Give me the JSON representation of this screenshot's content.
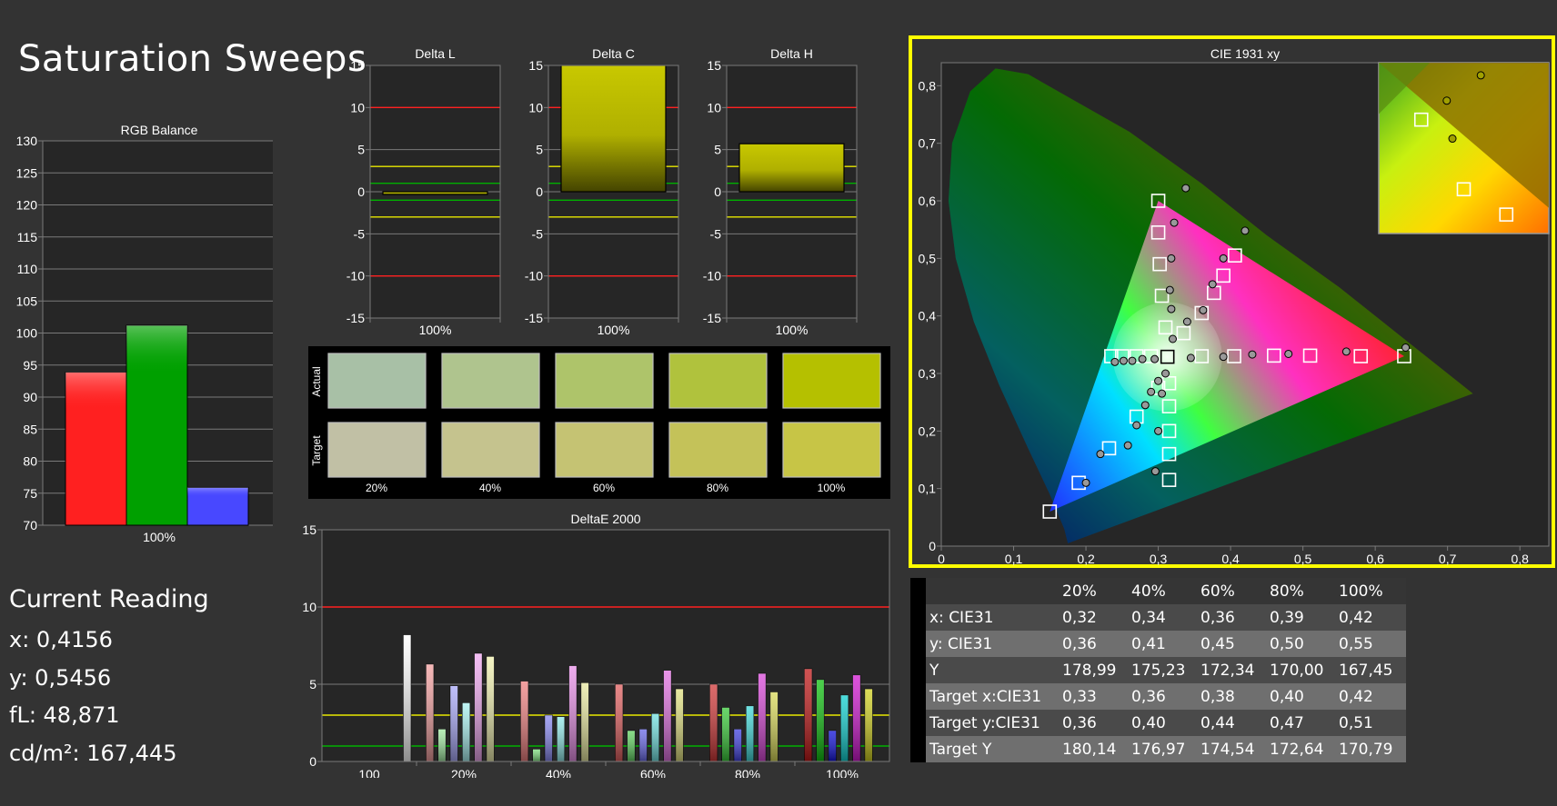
{
  "page_title": "Saturation Sweeps",
  "current_reading": {
    "heading": "Current Reading",
    "lines": [
      "x: 0,4156",
      "y: 0,5456",
      "fL: 48,871",
      "cd/m²: 167,445"
    ]
  },
  "colors": {
    "background": "#333333",
    "plot_bg": "#262626",
    "grid": "#7a7a7a",
    "highlight_border": "#ffff00",
    "red_limit": "#ff2020",
    "yellow_limit": "#e8e800",
    "green_limit": "#00b000",
    "yellow_bar": "#c8c800"
  },
  "chart_data": [
    {
      "id": "rgb_balance",
      "type": "bar",
      "title": "RGB Balance",
      "categories": [
        "100%"
      ],
      "ylim": [
        70,
        130
      ],
      "yticks": [
        70,
        75,
        80,
        85,
        90,
        95,
        100,
        105,
        110,
        115,
        120,
        125,
        130
      ],
      "series": [
        {
          "color": "#ff2020",
          "values": [
            93.9
          ]
        },
        {
          "color": "#00a000",
          "values": [
            101.2
          ]
        },
        {
          "color": "#4848ff",
          "values": [
            75.9
          ]
        }
      ],
      "grid": true
    },
    {
      "id": "delta_l",
      "type": "bar",
      "title": "Delta L",
      "categories": [
        "100%"
      ],
      "values": [
        -0.3
      ],
      "ylim": [
        -15,
        15
      ],
      "yticks": [
        15,
        10,
        5,
        0,
        -5,
        -10,
        -15
      ],
      "limits": {
        "red": [
          10,
          -10
        ],
        "yellow": [
          3,
          -3
        ],
        "green": [
          1,
          -1
        ]
      }
    },
    {
      "id": "delta_c",
      "type": "bar",
      "title": "Delta C",
      "categories": [
        "100%"
      ],
      "values": [
        15
      ],
      "ylim": [
        -15,
        15
      ],
      "yticks": [
        15,
        10,
        5,
        0,
        -5,
        -10,
        -15
      ],
      "limits": {
        "red": [
          10,
          -10
        ],
        "yellow": [
          3,
          -3
        ],
        "green": [
          1,
          -1
        ]
      }
    },
    {
      "id": "delta_h",
      "type": "bar",
      "title": "Delta H",
      "categories": [
        "100%"
      ],
      "values": [
        5.7
      ],
      "ylim": [
        -15,
        15
      ],
      "yticks": [
        15,
        10,
        5,
        0,
        -5,
        -10,
        -15
      ],
      "limits": {
        "red": [
          10,
          -10
        ],
        "yellow": [
          3,
          -3
        ],
        "green": [
          1,
          -1
        ]
      }
    },
    {
      "id": "swatches",
      "type": "table",
      "rows": [
        "Actual",
        "Target"
      ],
      "columns": [
        "20%",
        "40%",
        "60%",
        "80%",
        "100%"
      ],
      "actual_colors": [
        "#a8c0a6",
        "#afc48e",
        "#aec46a",
        "#b0c23d",
        "#b5c000"
      ],
      "target_colors": [
        "#c1c0a5",
        "#c5c38e",
        "#c5c373",
        "#c4c259",
        "#c7c546"
      ]
    },
    {
      "id": "deltae_2000",
      "type": "bar",
      "title": "DeltaE 2000",
      "categories": [
        "100",
        "20%",
        "40%",
        "60%",
        "80%",
        "100%"
      ],
      "ylim": [
        0,
        15
      ],
      "yticks": [
        0,
        5,
        10,
        15
      ],
      "limits": {
        "red": 10,
        "yellow": 3,
        "green": 1
      },
      "groups": [
        {
          "category": "100",
          "bars": [
            {
              "color": "#ffffff",
              "value": 8.2
            }
          ]
        },
        {
          "category": "20%",
          "bars": [
            {
              "color": "#f2a0a0",
              "value": 6.3
            },
            {
              "color": "#a0e8a0",
              "value": 2.1
            },
            {
              "color": "#a8a8f8",
              "value": 4.9
            },
            {
              "color": "#a8f0f0",
              "value": 3.8
            },
            {
              "color": "#f0a8f0",
              "value": 7.0
            },
            {
              "color": "#f0f0b0",
              "value": 6.8
            }
          ]
        },
        {
          "category": "40%",
          "bars": [
            {
              "color": "#ee8080",
              "value": 5.2
            },
            {
              "color": "#80e080",
              "value": 0.8
            },
            {
              "color": "#8888f0",
              "value": 3.0
            },
            {
              "color": "#90e8e8",
              "value": 2.9
            },
            {
              "color": "#e890e8",
              "value": 6.2
            },
            {
              "color": "#e8e8a0",
              "value": 5.1
            }
          ]
        },
        {
          "category": "60%",
          "bars": [
            {
              "color": "#e06060",
              "value": 5.0
            },
            {
              "color": "#60d060",
              "value": 2.0
            },
            {
              "color": "#6868e8",
              "value": 2.1
            },
            {
              "color": "#70e0e0",
              "value": 3.1
            },
            {
              "color": "#e070e0",
              "value": 5.9
            },
            {
              "color": "#e0e080",
              "value": 4.7
            }
          ]
        },
        {
          "category": "80%",
          "bars": [
            {
              "color": "#d03838",
              "value": 5.0
            },
            {
              "color": "#38c838",
              "value": 3.5
            },
            {
              "color": "#4040e0",
              "value": 2.1
            },
            {
              "color": "#40d8d8",
              "value": 3.6
            },
            {
              "color": "#d848d8",
              "value": 5.7
            },
            {
              "color": "#d8d858",
              "value": 4.5
            }
          ]
        },
        {
          "category": "100%",
          "bars": [
            {
              "color": "#c01818",
              "value": 6.0
            },
            {
              "color": "#10c010",
              "value": 5.3
            },
            {
              "color": "#1010d8",
              "value": 2.0
            },
            {
              "color": "#10d0d0",
              "value": 4.3
            },
            {
              "color": "#d018d0",
              "value": 5.6
            },
            {
              "color": "#d0d020",
              "value": 4.7
            }
          ]
        }
      ]
    },
    {
      "id": "cie_1931",
      "type": "scatter",
      "title": "CIE 1931 xy",
      "xlim": [
        0,
        0.84
      ],
      "ylim": [
        0,
        0.84
      ],
      "xticks": [
        "0",
        "0,1",
        "0,2",
        "0,3",
        "0,4",
        "0,5",
        "0,6",
        "0,7",
        "0,8"
      ],
      "yticks": [
        "0",
        "0,1",
        "0,2",
        "0,3",
        "0,4",
        "0,5",
        "0,6",
        "0,7",
        "0,8"
      ],
      "xtick_values": [
        0,
        0.1,
        0.2,
        0.3,
        0.4,
        0.5,
        0.6,
        0.7,
        0.8
      ],
      "gamut": {
        "red": [
          0.64,
          0.33
        ],
        "green": [
          0.3,
          0.6
        ],
        "blue": [
          0.15,
          0.06
        ],
        "white": [
          0.3127,
          0.329
        ]
      },
      "targets": [
        [
          0.3127,
          0.329
        ],
        [
          0.36,
          0.33
        ],
        [
          0.405,
          0.33
        ],
        [
          0.46,
          0.331
        ],
        [
          0.51,
          0.331
        ],
        [
          0.58,
          0.33
        ],
        [
          0.64,
          0.33
        ],
        [
          0.31,
          0.38
        ],
        [
          0.305,
          0.435
        ],
        [
          0.302,
          0.49
        ],
        [
          0.3,
          0.545
        ],
        [
          0.3,
          0.6
        ],
        [
          0.3,
          0.275
        ],
        [
          0.27,
          0.225
        ],
        [
          0.232,
          0.17
        ],
        [
          0.19,
          0.11
        ],
        [
          0.15,
          0.06
        ],
        [
          0.29,
          0.33
        ],
        [
          0.27,
          0.33
        ],
        [
          0.25,
          0.33
        ],
        [
          0.235,
          0.33
        ],
        [
          0.315,
          0.283
        ],
        [
          0.315,
          0.243
        ],
        [
          0.315,
          0.2
        ],
        [
          0.315,
          0.16
        ],
        [
          0.315,
          0.115
        ],
        [
          0.335,
          0.37
        ],
        [
          0.36,
          0.405
        ],
        [
          0.377,
          0.44
        ],
        [
          0.39,
          0.47
        ],
        [
          0.406,
          0.505
        ]
      ],
      "measured": [
        [
          0.345,
          0.327
        ],
        [
          0.39,
          0.329
        ],
        [
          0.43,
          0.333
        ],
        [
          0.48,
          0.334
        ],
        [
          0.56,
          0.338
        ],
        [
          0.642,
          0.345
        ],
        [
          0.32,
          0.36
        ],
        [
          0.318,
          0.412
        ],
        [
          0.316,
          0.445
        ],
        [
          0.318,
          0.5
        ],
        [
          0.322,
          0.562
        ],
        [
          0.338,
          0.622
        ],
        [
          0.3,
          0.287
        ],
        [
          0.29,
          0.268
        ],
        [
          0.282,
          0.245
        ],
        [
          0.27,
          0.21
        ],
        [
          0.258,
          0.175
        ],
        [
          0.22,
          0.16
        ],
        [
          0.2,
          0.11
        ],
        [
          0.295,
          0.325
        ],
        [
          0.278,
          0.325
        ],
        [
          0.264,
          0.322
        ],
        [
          0.252,
          0.322
        ],
        [
          0.24,
          0.32
        ],
        [
          0.31,
          0.3
        ],
        [
          0.305,
          0.265
        ],
        [
          0.3,
          0.2
        ],
        [
          0.296,
          0.13
        ],
        [
          0.34,
          0.39
        ],
        [
          0.362,
          0.41
        ],
        [
          0.375,
          0.455
        ],
        [
          0.39,
          0.5
        ],
        [
          0.42,
          0.548
        ]
      ],
      "inset": {
        "xlim": [
          0.5,
          0.8
        ],
        "ylim": [
          0.33,
          0.56
        ],
        "measured": [
          [
            0.342,
            0.6
          ],
          [
            0.322,
            0.5
          ],
          [
            0.318,
            0.56
          ]
        ],
        "targets": [
          [
            0.3,
            0.53
          ],
          [
            0.33,
            0.42
          ],
          [
            0.36,
            0.38
          ]
        ]
      }
    }
  ],
  "data_table": {
    "columns": [
      "20%",
      "40%",
      "60%",
      "80%",
      "100%"
    ],
    "rows": [
      {
        "label": "x: CIE31",
        "values": [
          "0,32",
          "0,34",
          "0,36",
          "0,39",
          "0,42"
        ]
      },
      {
        "label": "y: CIE31",
        "values": [
          "0,36",
          "0,41",
          "0,45",
          "0,50",
          "0,55"
        ]
      },
      {
        "label": "Y",
        "values": [
          "178,99",
          "175,23",
          "172,34",
          "170,00",
          "167,45"
        ]
      },
      {
        "label": "Target x:CIE31",
        "values": [
          "0,33",
          "0,36",
          "0,38",
          "0,40",
          "0,42"
        ]
      },
      {
        "label": "Target y:CIE31",
        "values": [
          "0,36",
          "0,40",
          "0,44",
          "0,47",
          "0,51"
        ]
      },
      {
        "label": "Target Y",
        "values": [
          "180,14",
          "176,97",
          "174,54",
          "172,64",
          "170,79"
        ]
      }
    ]
  }
}
